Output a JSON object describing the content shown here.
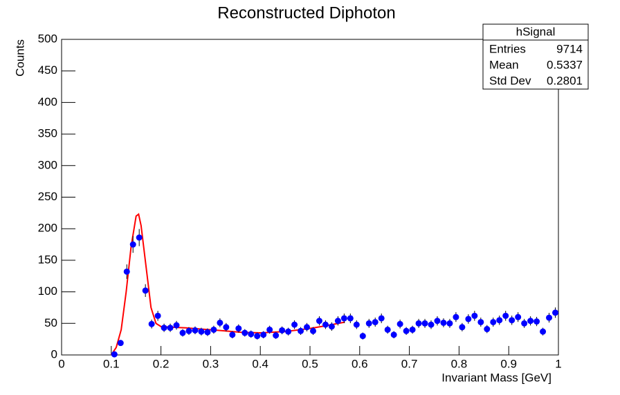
{
  "chart_data": {
    "type": "scatter",
    "title": "Reconstructed Diphoton",
    "xlabel": "Invariant Mass [GeV]",
    "ylabel": "Counts",
    "xlim": [
      0,
      1
    ],
    "ylim": [
      0,
      500
    ],
    "xticks": [
      0,
      0.1,
      0.2,
      0.3,
      0.4,
      0.5,
      0.6,
      0.7,
      0.8,
      0.9,
      1
    ],
    "yticks": [
      0,
      50,
      100,
      150,
      200,
      250,
      300,
      350,
      400,
      450,
      500
    ],
    "series": [
      {
        "color": "#0000ff",
        "x": [
          0.10625,
          0.11875,
          0.13125,
          0.14375,
          0.15625,
          0.16875,
          0.18125,
          0.19375,
          0.20625,
          0.21875,
          0.23125,
          0.24375,
          0.25625,
          0.26875,
          0.28125,
          0.29375,
          0.30625,
          0.31875,
          0.33125,
          0.34375,
          0.35625,
          0.36875,
          0.38125,
          0.39375,
          0.40625,
          0.41875,
          0.43125,
          0.44375,
          0.45625,
          0.46875,
          0.48125,
          0.49375,
          0.50625,
          0.51875,
          0.53125,
          0.54375,
          0.55625,
          0.56875,
          0.58125,
          0.59375,
          0.60625,
          0.61875,
          0.63125,
          0.64375,
          0.65625,
          0.66875,
          0.68125,
          0.69375,
          0.70625,
          0.71875,
          0.73125,
          0.74375,
          0.75625,
          0.76875,
          0.78125,
          0.79375,
          0.80625,
          0.81875,
          0.83125,
          0.84375,
          0.85625,
          0.86875,
          0.88125,
          0.89375,
          0.90625,
          0.91875,
          0.93125,
          0.94375,
          0.95625,
          0.96875,
          0.98125,
          0.99375
        ],
        "values": [
          1,
          19,
          132,
          175,
          186,
          102,
          49,
          62,
          43,
          43,
          47,
          35,
          38,
          39,
          37,
          36,
          40,
          51,
          44,
          32,
          42,
          35,
          33,
          30,
          32,
          40,
          31,
          39,
          37,
          48,
          38,
          44,
          38,
          54,
          48,
          45,
          54,
          58,
          58,
          48,
          30,
          50,
          52,
          58,
          40,
          32,
          49,
          38,
          40,
          50,
          50,
          48,
          54,
          51,
          50,
          60,
          44,
          57,
          62,
          52,
          41,
          52,
          55,
          62,
          55,
          60,
          50,
          54,
          53,
          37,
          59,
          67
        ],
        "errors": [
          1,
          4.4,
          11.5,
          13.2,
          13.6,
          10.1,
          7,
          7.9,
          6.6,
          6.6,
          6.9,
          5.9,
          6.2,
          6.2,
          6.1,
          6,
          6.3,
          7.1,
          6.6,
          5.7,
          6.5,
          5.9,
          5.7,
          5.5,
          5.7,
          6.3,
          5.6,
          6.2,
          6.1,
          6.9,
          6.2,
          6.6,
          6.2,
          7.3,
          6.9,
          6.7,
          7.3,
          7.6,
          7.6,
          6.9,
          5.5,
          7.1,
          7.2,
          7.6,
          6.3,
          5.7,
          7,
          6.2,
          6.3,
          7.1,
          7.1,
          6.9,
          7.3,
          7.1,
          7.1,
          7.7,
          6.6,
          7.5,
          7.9,
          7.2,
          6.4,
          7.2,
          7.4,
          7.9,
          7.4,
          7.7,
          7.1,
          7.3,
          7.3,
          6.1,
          7.7,
          8.2
        ]
      }
    ],
    "fit": {
      "color": "#ff0000",
      "x": [
        0.1,
        0.11,
        0.12,
        0.13,
        0.14,
        0.15,
        0.155,
        0.16,
        0.17,
        0.18,
        0.19,
        0.2,
        0.22,
        0.25,
        0.28,
        0.3,
        0.33,
        0.36,
        0.4,
        0.45,
        0.5,
        0.53,
        0.57
      ],
      "y": [
        0,
        12,
        40,
        100,
        172,
        220,
        223,
        205,
        140,
        75,
        50,
        45,
        44,
        43,
        41,
        40,
        38,
        36,
        35,
        37,
        42,
        46,
        52
      ]
    },
    "stats": {
      "title": "hSignal",
      "rows": [
        [
          "Entries",
          "9714"
        ],
        [
          "Mean",
          "0.5337"
        ],
        [
          "Std Dev",
          "0.2801"
        ]
      ]
    }
  }
}
